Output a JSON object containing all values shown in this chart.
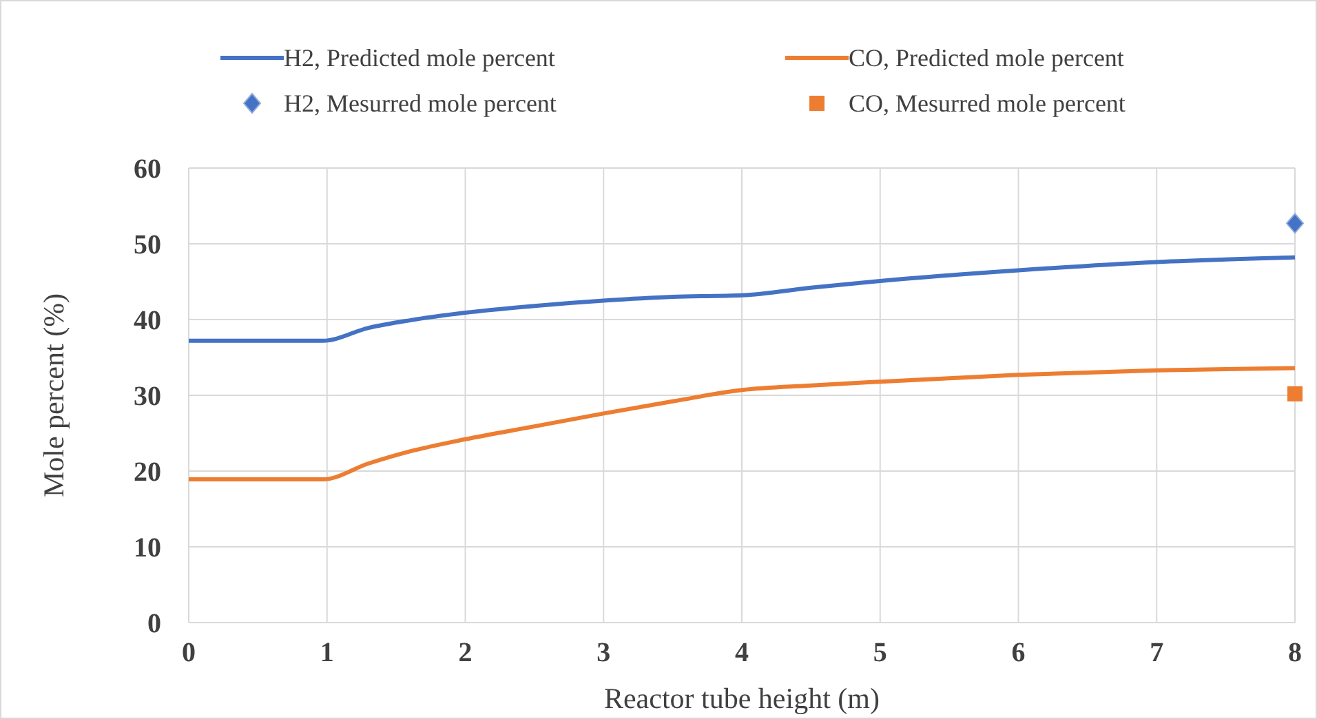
{
  "chart_data": {
    "type": "line",
    "xlabel": "Reactor tube height (m)",
    "ylabel": "Mole percent (%)",
    "xlim": [
      0,
      8
    ],
    "xticks": [
      0,
      1,
      2,
      3,
      4,
      5,
      6,
      7,
      8
    ],
    "ylim": [
      0,
      60
    ],
    "yticks": [
      0,
      10,
      20,
      30,
      40,
      50,
      60
    ],
    "grid": true,
    "legend": "top",
    "series": [
      {
        "name": "H2, Predicted mole percent",
        "color": "#4472c4",
        "x": [
          0,
          0.5,
          0.97,
          1.3,
          1.6,
          2,
          2.5,
          3,
          3.5,
          4,
          4.5,
          5,
          6,
          7,
          8
        ],
        "values": [
          37.2,
          37.2,
          37.2,
          38.9,
          39.9,
          40.9,
          41.8,
          42.5,
          43,
          43.2,
          44.2,
          45.1,
          46.5,
          47.6,
          48.2
        ]
      },
      {
        "name": "CO, Predicted mole percent",
        "color": "#ed7d31",
        "x": [
          0,
          0.5,
          0.97,
          1.3,
          1.6,
          2,
          2.5,
          3,
          3.5,
          4,
          4.5,
          5,
          6,
          7,
          8
        ],
        "values": [
          18.9,
          18.9,
          18.9,
          21,
          22.6,
          24.2,
          25.9,
          27.6,
          29.2,
          30.7,
          31.3,
          31.8,
          32.7,
          33.3,
          33.6
        ]
      },
      {
        "name": "H2, Mesurred mole  percent",
        "type": "scatter",
        "marker": "diamond",
        "color": "#4472c4",
        "x": [
          8
        ],
        "values": [
          52.7
        ]
      },
      {
        "name": "CO, Mesurred mole percent",
        "type": "scatter",
        "marker": "square",
        "color": "#ed7d31",
        "x": [
          8
        ],
        "values": [
          30.2
        ]
      }
    ]
  }
}
